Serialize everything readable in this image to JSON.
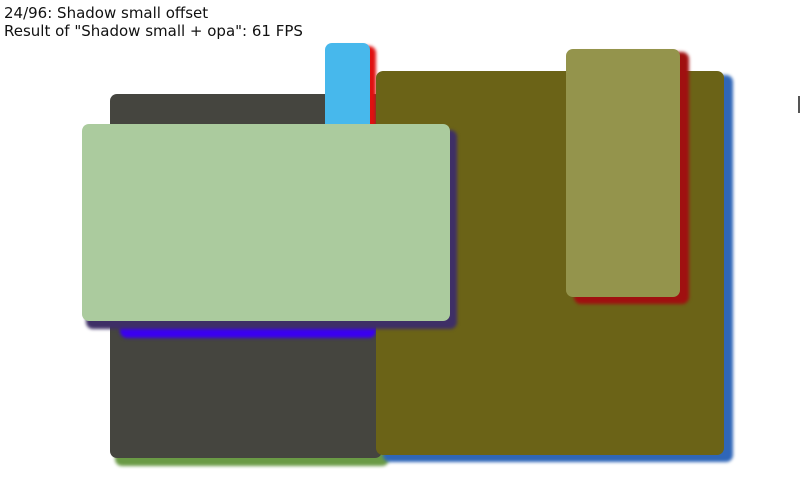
{
  "header": {
    "scene_title": "24/96: Shadow small offset",
    "result_text": "Result of \"Shadow small + opa\": 61 FPS"
  },
  "colors": {
    "background": "#ffffff",
    "dark_rect": "#45453f",
    "dark_rect_shadow": "#6a9a45",
    "blue_shadow_bar": "#3a00f0",
    "cyan_rect": "#47b8ec",
    "cyan_rect_shadow": "#e01010",
    "olive_rect": "#6b6317",
    "olive_rect_shadow": "#2f66b8",
    "khaki_rect": "#94944c",
    "khaki_rect_shadow": "#a01010",
    "green_rect": "#abcb9e",
    "green_rect_shadow": "#3e2f66"
  }
}
